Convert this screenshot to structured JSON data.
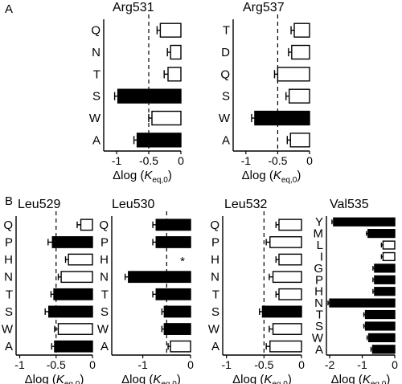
{
  "panels": [
    {
      "letter": "A"
    },
    {
      "letter": "B"
    }
  ],
  "xlabel": {
    "prefix": "Δlog (",
    "k": "K",
    "sub": "eq,0",
    "suffix": ")"
  },
  "chart_data": [
    {
      "type": "bar",
      "orientation": "horizontal",
      "title": "Arg531",
      "categories": [
        "Q",
        "N",
        "T",
        "S",
        "W",
        "A"
      ],
      "values": [
        -0.32,
        -0.16,
        -0.2,
        -0.98,
        -0.45,
        -0.68
      ],
      "errors": [
        0.05,
        0.05,
        0.06,
        0.05,
        0.05,
        0.05
      ],
      "fill": [
        "white",
        "white",
        "white",
        "black",
        "white",
        "black"
      ],
      "xlim": [
        -1.2,
        0
      ],
      "xticks": [
        -1,
        -0.5,
        0
      ],
      "xtick_labels": [
        "-1",
        "-0.5",
        "0"
      ],
      "ref_line": -0.5
    },
    {
      "type": "bar",
      "orientation": "horizontal",
      "title": "Arg537",
      "categories": [
        "T",
        "D",
        "Q",
        "S",
        "W",
        "A"
      ],
      "values": [
        -0.24,
        -0.28,
        -0.5,
        -0.32,
        -0.86,
        -0.3
      ],
      "errors": [
        0.05,
        0.05,
        0.05,
        0.05,
        0.05,
        0.05
      ],
      "fill": [
        "white",
        "white",
        "white",
        "white",
        "black",
        "white"
      ],
      "xlim": [
        -1.2,
        0
      ],
      "xticks": [
        -1,
        -0.5,
        0
      ],
      "xtick_labels": [
        "-1",
        "-0.5",
        "0"
      ],
      "ref_line": -0.5
    },
    {
      "type": "bar",
      "orientation": "horizontal",
      "title": "Leu529",
      "categories": [
        "Q",
        "P",
        "H",
        "N",
        "T",
        "S",
        "W",
        "A"
      ],
      "values": [
        -0.16,
        -0.55,
        -0.33,
        -0.43,
        -0.53,
        -0.6,
        -0.47,
        -0.52
      ],
      "errors": [
        0.05,
        0.06,
        0.04,
        0.04,
        0.04,
        0.05,
        0.05,
        0.04
      ],
      "fill": [
        "white",
        "black",
        "white",
        "white",
        "black",
        "black",
        "white",
        "black"
      ],
      "xlim": [
        -1.05,
        0
      ],
      "xticks": [
        -1,
        -0.5,
        0
      ],
      "xtick_labels": [
        "-1",
        "-0.5",
        "0"
      ],
      "ref_line": -0.5
    },
    {
      "type": "bar",
      "orientation": "horizontal",
      "title": "Leu530",
      "categories": [
        "Q",
        "P",
        "H",
        "N",
        "T",
        "S",
        "W",
        "A"
      ],
      "values": [
        -0.72,
        -0.72,
        0,
        -1.3,
        -0.72,
        -0.55,
        -0.55,
        -0.42
      ],
      "errors": [
        0.07,
        0.07,
        0,
        0.07,
        0.07,
        0.05,
        0.05,
        0.05
      ],
      "fill": [
        "black",
        "black",
        "white",
        "black",
        "black",
        "black",
        "black",
        "white"
      ],
      "annotations": [
        {
          "category": "H",
          "text": "*"
        }
      ],
      "xlim": [
        -1.65,
        0
      ],
      "xticks": [
        -1,
        0
      ],
      "xtick_labels": [
        "-1",
        "0"
      ],
      "ref_line": -0.5
    },
    {
      "type": "bar",
      "orientation": "horizontal",
      "title": "Leu532",
      "categories": [
        "Q",
        "P",
        "H",
        "N",
        "T",
        "S",
        "W",
        "A"
      ],
      "values": [
        -0.3,
        -0.42,
        -0.3,
        -0.38,
        -0.3,
        -0.52,
        -0.38,
        -0.42
      ],
      "errors": [
        0.04,
        0.05,
        0.04,
        0.05,
        0.04,
        0.04,
        0.05,
        0.05
      ],
      "fill": [
        "white",
        "white",
        "white",
        "white",
        "white",
        "black",
        "white",
        "white"
      ],
      "xlim": [
        -1.05,
        0
      ],
      "xticks": [
        -1,
        -0.5,
        0
      ],
      "xtick_labels": [
        "-1",
        "-0.5",
        "0"
      ],
      "ref_line": -0.5
    },
    {
      "type": "bar",
      "orientation": "horizontal",
      "title": "Val535",
      "categories": [
        "Y",
        "M",
        "L",
        "I",
        "G",
        "P",
        "H",
        "N",
        "T",
        "S",
        "W",
        "A"
      ],
      "values": [
        -1.88,
        -0.82,
        -0.36,
        -0.36,
        -0.62,
        -0.62,
        -0.62,
        -2.0,
        -0.9,
        -0.9,
        -0.8,
        -0.68
      ],
      "errors": [
        0.05,
        0.05,
        0.05,
        0.05,
        0.05,
        0.05,
        0.05,
        0.05,
        0.05,
        0.05,
        0.05,
        0.05
      ],
      "fill": [
        "black",
        "black",
        "white",
        "white",
        "black",
        "black",
        "black",
        "black",
        "black",
        "black",
        "black",
        "black"
      ],
      "xlim": [
        -2.1,
        0
      ],
      "xticks": [
        -2,
        -1,
        0
      ],
      "xtick_labels": [
        "-2",
        "-1",
        "0"
      ],
      "ref_line": null
    }
  ]
}
